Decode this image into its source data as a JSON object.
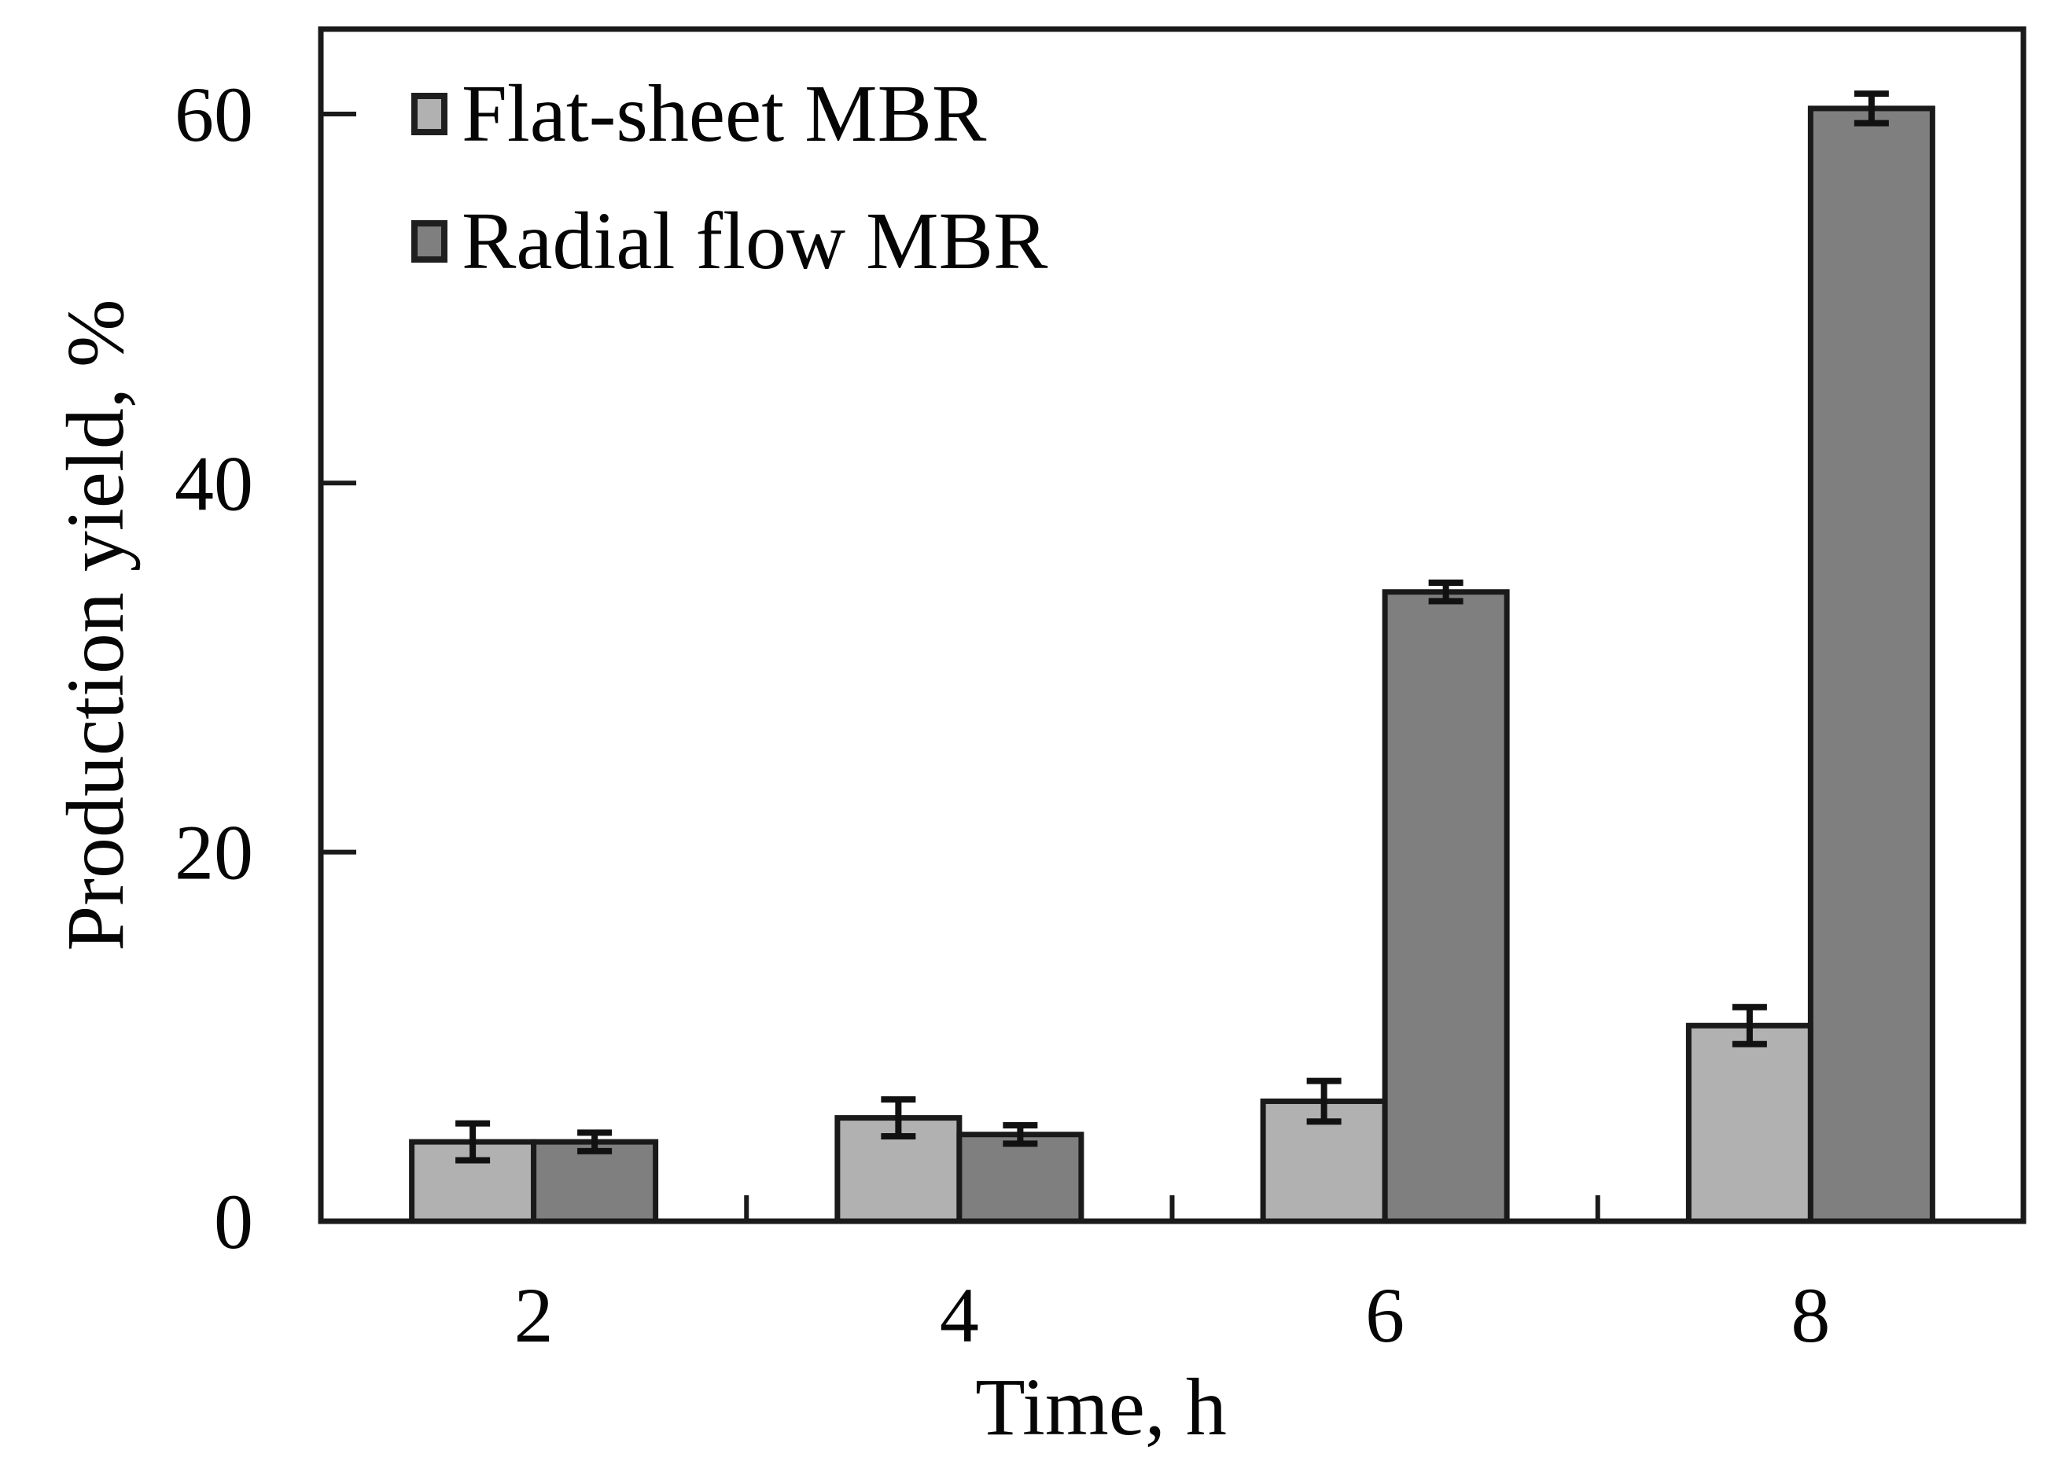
{
  "chart_data": {
    "type": "bar",
    "title": "",
    "xlabel": "Time, h",
    "ylabel": "Production yield, %",
    "categories": [
      "2",
      "4",
      "6",
      "8"
    ],
    "series": [
      {
        "name": "Flat-sheet MBR",
        "color": "#b1b1b1",
        "values": [
          4.3,
          5.6,
          6.5,
          10.6
        ],
        "errors": [
          1.0,
          1.0,
          1.1,
          1.0
        ]
      },
      {
        "name": "Radial flow MBR",
        "color": "#7f7f7f",
        "values": [
          4.3,
          4.7,
          34.1,
          60.3
        ],
        "errors": [
          0.5,
          0.5,
          0.5,
          0.8
        ]
      }
    ],
    "yticks": [
      0,
      20,
      40,
      60
    ],
    "ylim": [
      0,
      64.6
    ],
    "grid": false,
    "legend_position": "top-left",
    "axis_color": "#1a1a1a",
    "error_bar_color": "#111111"
  }
}
